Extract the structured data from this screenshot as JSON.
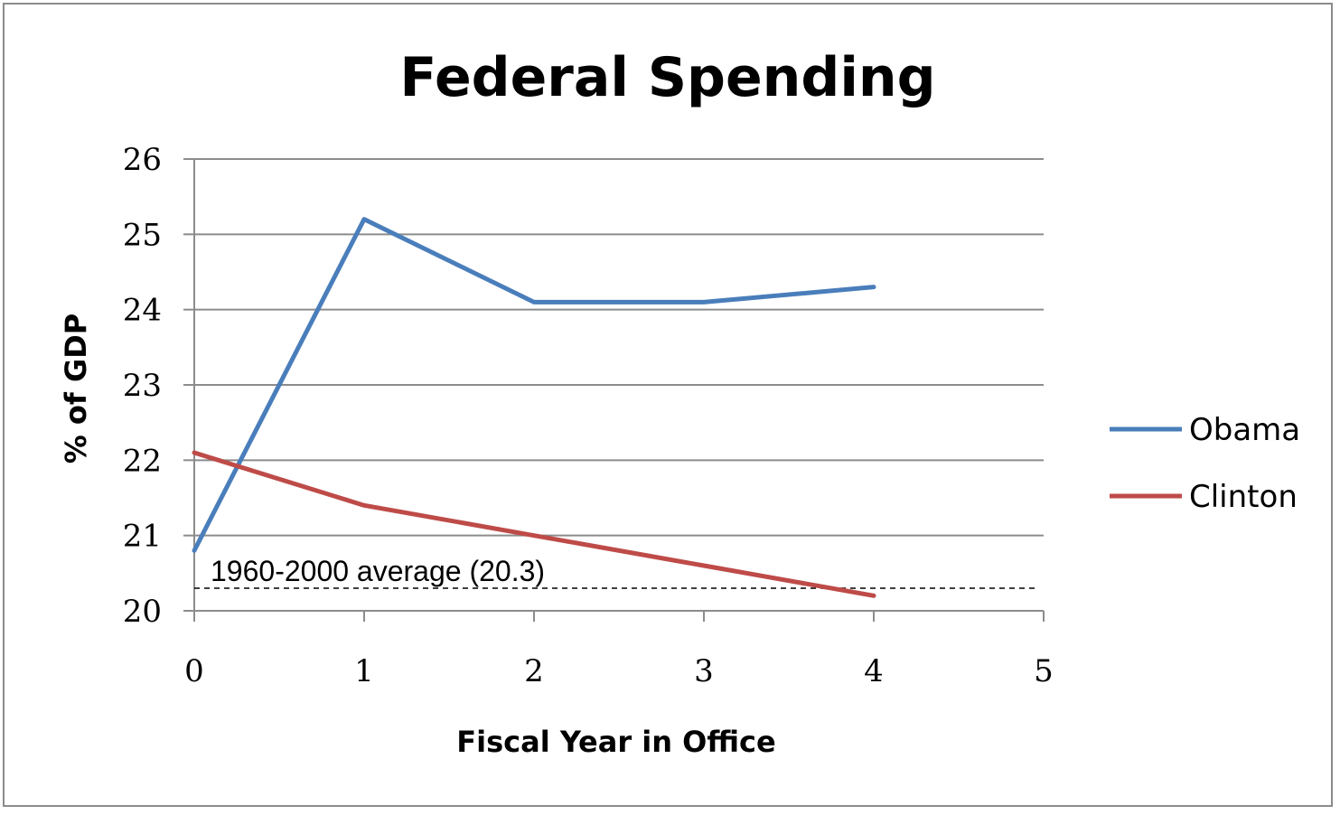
{
  "chart_data": {
    "type": "line",
    "title": "Federal Spending",
    "xlabel": "Fiscal Year in Office",
    "ylabel": "% of GDP",
    "xlim": [
      0,
      5
    ],
    "ylim": [
      20,
      26
    ],
    "x_ticks": [
      "0",
      "1",
      "2",
      "3",
      "4",
      "5"
    ],
    "y_ticks": [
      "20",
      "21",
      "22",
      "23",
      "24",
      "25",
      "26"
    ],
    "grid": true,
    "legend_position": "right",
    "series": [
      {
        "name": "Obama",
        "color": "#4a7ebb",
        "x": [
          0,
          1,
          2,
          3,
          4
        ],
        "values": [
          20.8,
          25.2,
          24.1,
          24.1,
          24.3
        ]
      },
      {
        "name": "Clinton",
        "color": "#be4b48",
        "x": [
          0,
          1,
          2,
          3,
          4
        ],
        "values": [
          22.1,
          21.4,
          21.0,
          20.6,
          20.2
        ]
      }
    ],
    "reference_line": {
      "value": 20.3,
      "label": "1960-2000 average (20.3)",
      "style": "dashed"
    }
  }
}
